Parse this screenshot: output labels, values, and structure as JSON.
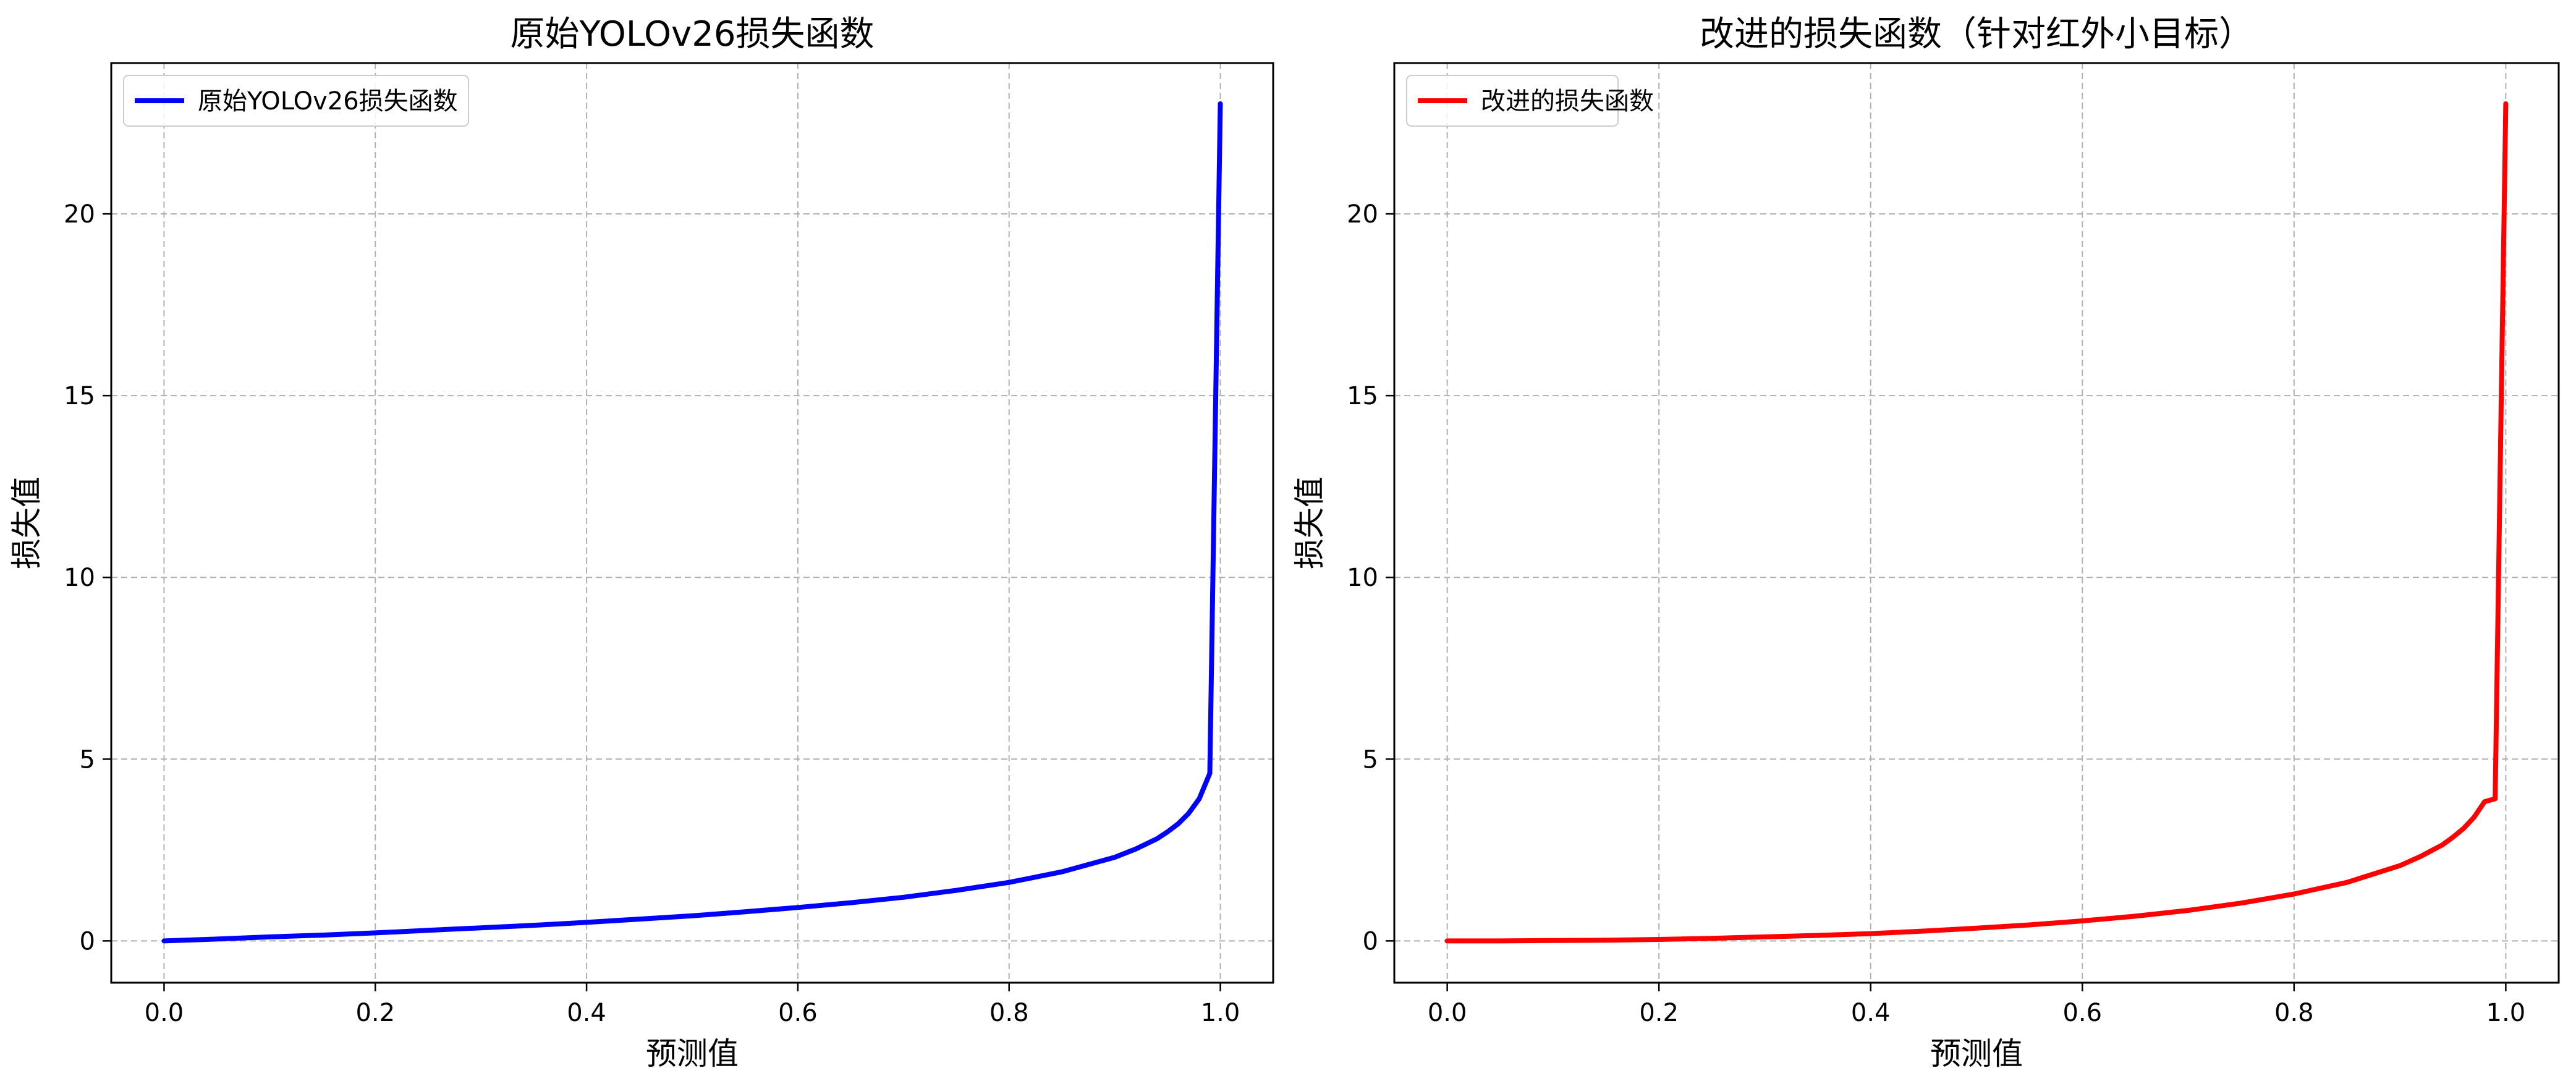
{
  "figure": {
    "background": "#ffffff",
    "grid_color": "#b0b0b0"
  },
  "chart_data": [
    {
      "type": "line",
      "title": "原始YOLOv26损失函数",
      "xlabel": "预测值",
      "ylabel": "损失值",
      "xlim": [
        -0.05,
        1.05
      ],
      "ylim": [
        -1.15,
        24.15
      ],
      "xticks": [
        0.0,
        0.2,
        0.4,
        0.6,
        0.8,
        1.0
      ],
      "xtick_labels": [
        "0.0",
        "0.2",
        "0.4",
        "0.6",
        "0.8",
        "1.0"
      ],
      "yticks": [
        0,
        5,
        10,
        15,
        20
      ],
      "ytick_labels": [
        "0",
        "5",
        "10",
        "15",
        "20"
      ],
      "grid": true,
      "legend": "upper left",
      "series": [
        {
          "name": "原始YOLOv26损失函数",
          "color": "#0000ff",
          "x": [
            0.0,
            0.05,
            0.1,
            0.15,
            0.2,
            0.25,
            0.3,
            0.35,
            0.4,
            0.45,
            0.5,
            0.55,
            0.6,
            0.65,
            0.7,
            0.75,
            0.8,
            0.85,
            0.9,
            0.92,
            0.94,
            0.95,
            0.96,
            0.97,
            0.98,
            0.99,
            1.0
          ],
          "y": [
            0.0,
            0.05,
            0.11,
            0.16,
            0.22,
            0.29,
            0.36,
            0.43,
            0.51,
            0.6,
            0.69,
            0.8,
            0.92,
            1.05,
            1.2,
            1.39,
            1.61,
            1.9,
            2.3,
            2.53,
            2.81,
            3.0,
            3.22,
            3.51,
            3.91,
            4.61,
            23.03
          ]
        }
      ]
    },
    {
      "type": "line",
      "title": "改进的损失函数（针对红外小目标）",
      "xlabel": "预测值",
      "ylabel": "损失值",
      "xlim": [
        -0.05,
        1.05
      ],
      "ylim": [
        -1.15,
        24.15
      ],
      "xticks": [
        0.0,
        0.2,
        0.4,
        0.6,
        0.8,
        1.0
      ],
      "xtick_labels": [
        "0.0",
        "0.2",
        "0.4",
        "0.6",
        "0.8",
        "1.0"
      ],
      "yticks": [
        0,
        5,
        10,
        15,
        20
      ],
      "ytick_labels": [
        "0",
        "5",
        "10",
        "15",
        "20"
      ],
      "grid": true,
      "legend": "upper left",
      "series": [
        {
          "name": "改进的损失函数",
          "color": "#ff0000",
          "x": [
            0.0,
            0.05,
            0.1,
            0.15,
            0.2,
            0.25,
            0.3,
            0.35,
            0.4,
            0.45,
            0.5,
            0.55,
            0.6,
            0.65,
            0.7,
            0.75,
            0.8,
            0.85,
            0.9,
            0.92,
            0.94,
            0.95,
            0.96,
            0.97,
            0.98,
            0.99,
            1.0
          ],
          "y": [
            0.0,
            0.0,
            0.01,
            0.02,
            0.04,
            0.07,
            0.11,
            0.15,
            0.2,
            0.27,
            0.35,
            0.44,
            0.55,
            0.68,
            0.84,
            1.04,
            1.29,
            1.61,
            2.07,
            2.33,
            2.64,
            2.85,
            3.09,
            3.4,
            3.83,
            3.91,
            23.03
          ]
        }
      ]
    }
  ]
}
